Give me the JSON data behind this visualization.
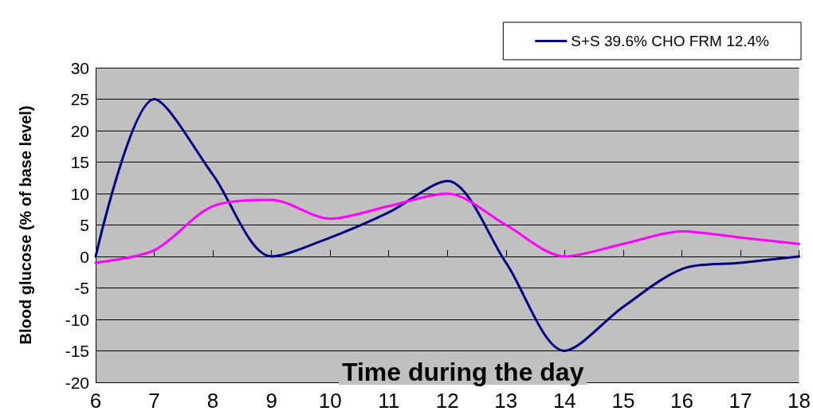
{
  "chart_data": {
    "type": "line",
    "xlabel": "Time during the day",
    "ylabel": "Blood glucose (% of base level)",
    "x": [
      6,
      7,
      8,
      9,
      10,
      11,
      12,
      13,
      14,
      15,
      16,
      17,
      18
    ],
    "series": [
      {
        "name": "S+S 39.6% CHO FRM 12.4%",
        "color": "#000080",
        "values": [
          0,
          25,
          13,
          0,
          3,
          7,
          12,
          -1,
          -15,
          -8,
          -2,
          -1,
          0
        ]
      },
      {
        "color": "#ff00ff",
        "values": [
          -1,
          1,
          8,
          9,
          6,
          8,
          10,
          5,
          0,
          2,
          4,
          3,
          2
        ]
      }
    ],
    "xlim": [
      6,
      18
    ],
    "xticks": [
      6,
      7,
      8,
      9,
      10,
      11,
      12,
      13,
      14,
      15,
      16,
      17,
      18
    ],
    "ylim": [
      -20,
      30
    ],
    "yticks": [
      -20,
      -15,
      -10,
      -5,
      0,
      5,
      10,
      15,
      20,
      25,
      30
    ],
    "grid": "y",
    "legend": "top right",
    "marker": "none",
    "line_style": "solid"
  }
}
